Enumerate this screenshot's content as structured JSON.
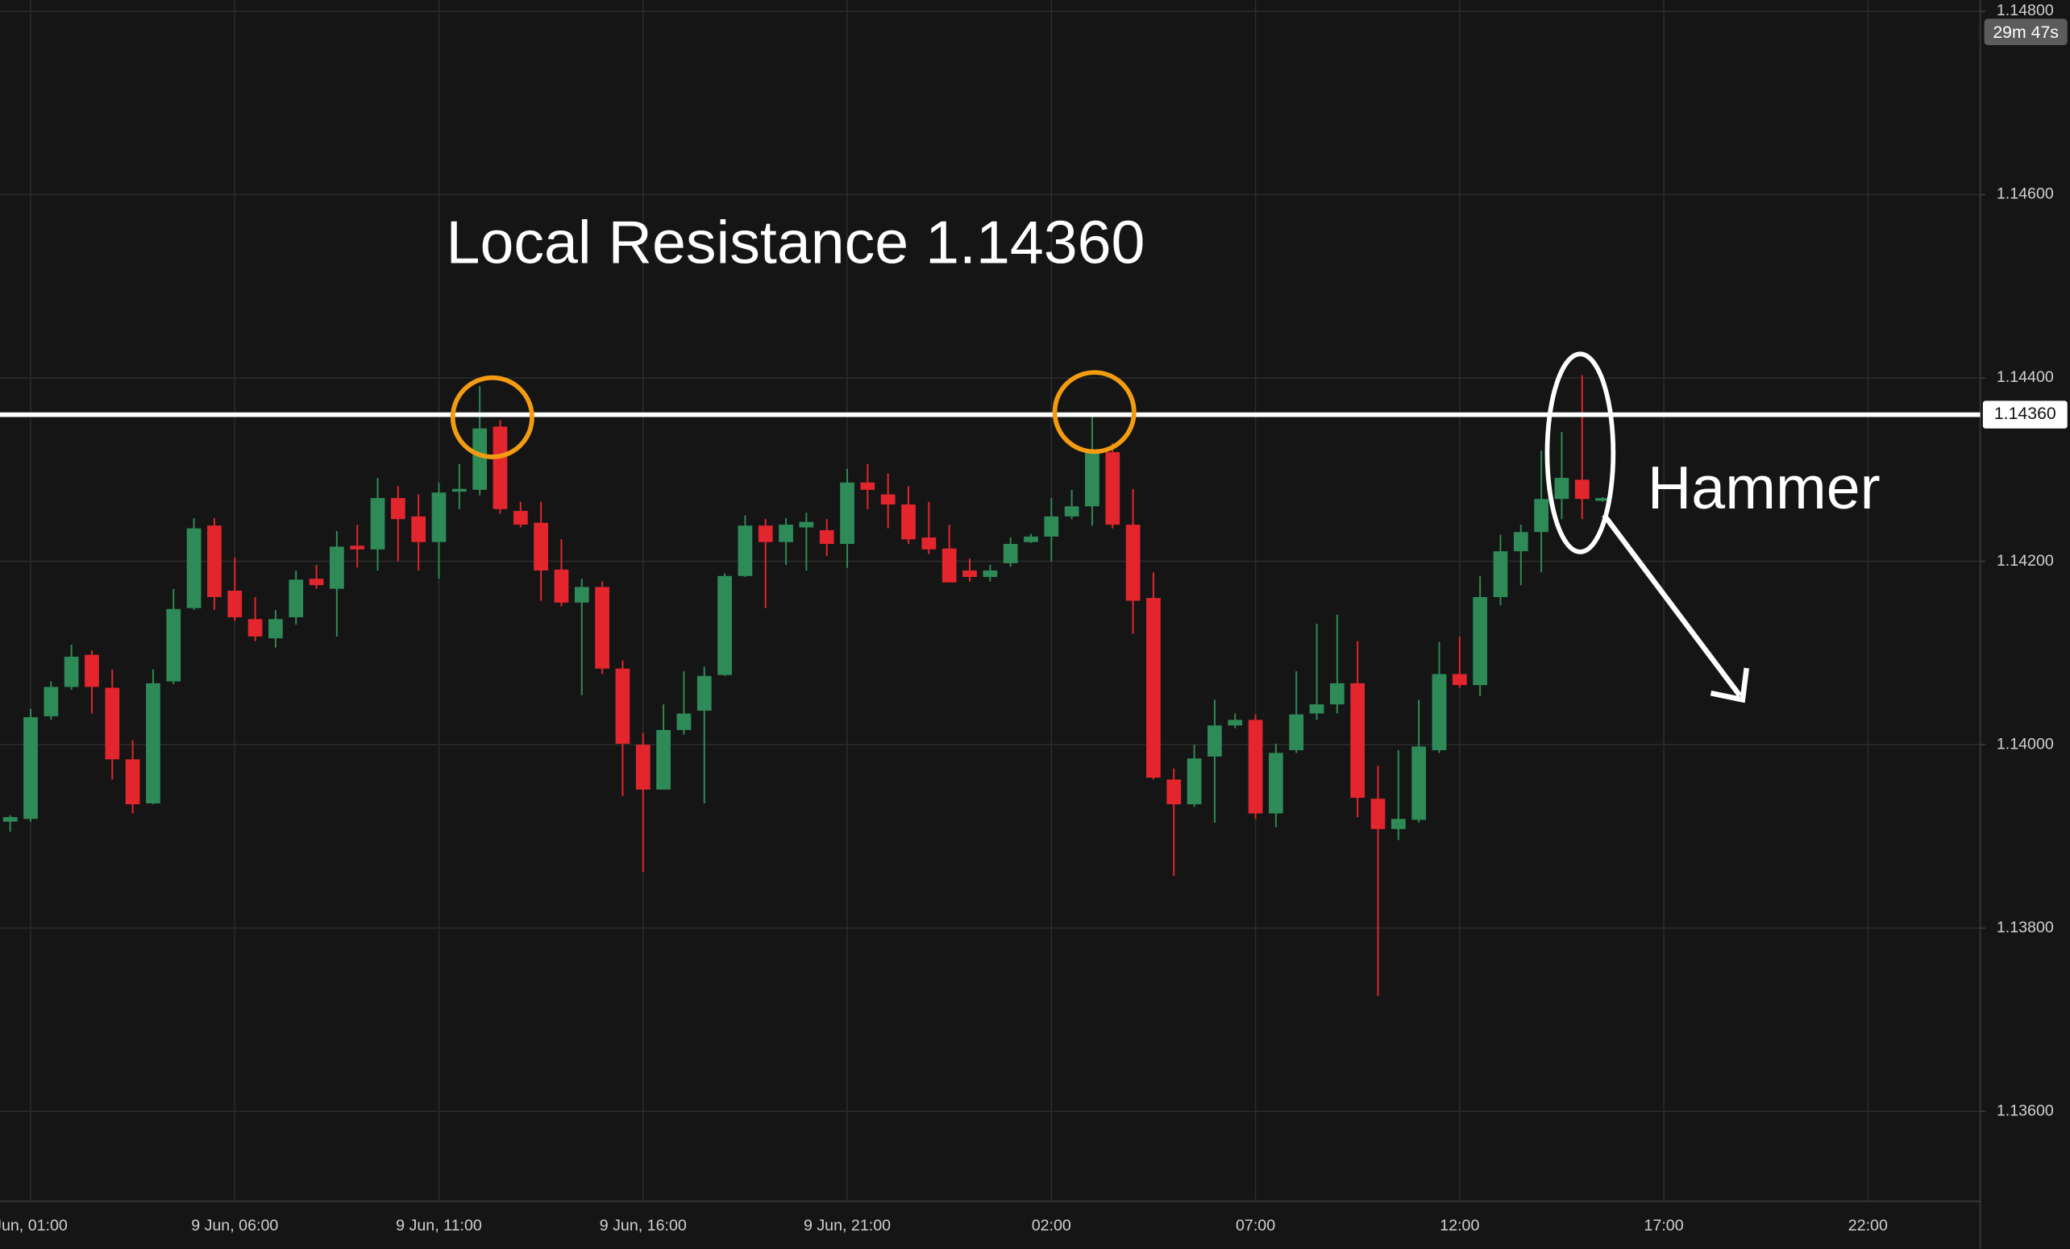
{
  "chart_data": {
    "type": "candlestick",
    "annotations": [
      "Local Resistance 1.14360",
      "Hammer"
    ],
    "countdown": "29m 47s",
    "resistance": {
      "value": 1.1436,
      "label": "1.14360"
    },
    "up_color": "#2e8b57",
    "down_color": "#e3262d",
    "grid": true,
    "ylim": [
      1.13502,
      1.14812
    ],
    "yticks": [
      {
        "value": 1.136,
        "label": "1.13600"
      },
      {
        "value": 1.138,
        "label": "1.13800"
      },
      {
        "value": 1.14,
        "label": "1.14000"
      },
      {
        "value": 1.142,
        "label": "1.14200"
      },
      {
        "value": 1.144,
        "label": "1.14400"
      },
      {
        "value": 1.146,
        "label": "1.14600"
      },
      {
        "value": 1.148,
        "label": "1.14800"
      }
    ],
    "categories": [
      null,
      "Jun, 01:00",
      null,
      null,
      null,
      null,
      null,
      null,
      null,
      null,
      null,
      "9 Jun, 06:00",
      null,
      null,
      null,
      null,
      null,
      null,
      null,
      null,
      null,
      "9 Jun, 11:00",
      null,
      null,
      null,
      null,
      null,
      null,
      null,
      null,
      null,
      "9 Jun, 16:00",
      null,
      null,
      null,
      null,
      null,
      null,
      null,
      null,
      null,
      "9 Jun, 21:00",
      null,
      null,
      null,
      null,
      null,
      null,
      null,
      null,
      null,
      "02:00",
      null,
      null,
      null,
      null,
      null,
      null,
      null,
      null,
      null,
      "07:00",
      null,
      null,
      null,
      null,
      null,
      null,
      null,
      null,
      null,
      "12:00",
      null,
      null,
      null,
      null,
      null,
      null,
      null,
      null,
      null,
      "17:00",
      null,
      null,
      null,
      null,
      null,
      null,
      null,
      null,
      null,
      "22:00",
      null,
      null,
      null,
      null,
      null
    ],
    "open": [
      1.13916,
      1.13919,
      1.14031,
      1.14063,
      1.14098,
      1.14062,
      1.13984,
      1.13936,
      1.14069,
      1.14149,
      1.14239,
      1.14168,
      1.14137,
      1.14116,
      1.14139,
      1.14181,
      1.1417,
      1.14217,
      1.14213,
      1.14269,
      1.14249,
      1.14221,
      1.14276,
      1.14278,
      1.14347,
      1.14255,
      1.14242,
      1.14191,
      1.14155,
      1.14172,
      1.14083,
      1.14,
      1.13951,
      1.14016,
      1.14037,
      1.14076,
      1.14184,
      1.14239,
      1.14221,
      1.14237,
      1.14234,
      1.14219,
      1.14286,
      1.14273,
      1.14262,
      1.14226,
      1.14214,
      1.1419,
      1.14183,
      1.14198,
      1.14221,
      1.14227,
      1.14249,
      1.1426,
      1.14319,
      1.1424,
      1.1416,
      1.13962,
      1.13935,
      1.13987,
      1.14021,
      1.14027,
      1.13925,
      1.13994,
      1.14034,
      1.14044,
      1.14067,
      1.13941,
      1.13908,
      1.13918,
      1.13994,
      1.14077,
      1.14065,
      1.14161,
      1.14211,
      1.14232,
      1.14268,
      1.14289,
      1.14266,
      null,
      null,
      null,
      null,
      null,
      null,
      null,
      null,
      null,
      null,
      null,
      null,
      null,
      null,
      null,
      null,
      null,
      null
    ],
    "high": [
      1.13923,
      1.14039,
      1.14069,
      1.14109,
      1.14103,
      1.14082,
      1.14005,
      1.14082,
      1.1417,
      1.14247,
      1.14247,
      1.14204,
      1.14161,
      1.14147,
      1.1419,
      1.14196,
      1.14233,
      1.1424,
      1.14291,
      1.14282,
      1.14273,
      1.14286,
      1.14306,
      1.14391,
      1.14354,
      1.14265,
      1.14265,
      1.14224,
      1.14181,
      1.14178,
      1.14092,
      1.14013,
      1.14044,
      1.1408,
      1.14085,
      1.14187,
      1.1425,
      1.14246,
      1.14247,
      1.14253,
      1.14246,
      1.14301,
      1.14306,
      1.14296,
      1.14282,
      1.14265,
      1.1424,
      1.14203,
      1.14196,
      1.14226,
      1.1423,
      1.14269,
      1.14278,
      1.14358,
      1.14329,
      1.14279,
      1.14188,
      1.13974,
      1.14,
      1.14049,
      1.14034,
      1.14033,
      1.14001,
      1.1408,
      1.14132,
      1.14142,
      1.14113,
      1.13977,
      1.13994,
      1.14049,
      1.14112,
      1.14118,
      1.14184,
      1.14229,
      1.1424,
      1.14321,
      1.14341,
      1.14403,
      1.1427,
      null,
      null,
      null,
      null,
      null,
      null,
      null,
      null,
      null,
      null,
      null,
      null,
      null,
      null,
      null,
      null,
      null,
      null
    ],
    "low": [
      1.13905,
      1.13916,
      1.14027,
      1.1406,
      1.14034,
      1.13962,
      1.13925,
      1.13935,
      1.14066,
      1.14147,
      1.14147,
      1.14135,
      1.14113,
      1.14106,
      1.14131,
      1.1417,
      1.14118,
      1.14193,
      1.1419,
      1.142,
      1.1419,
      1.14181,
      1.14257,
      1.14272,
      1.14252,
      1.14237,
      1.14157,
      1.14151,
      1.14054,
      1.14077,
      1.13944,
      1.13861,
      1.13951,
      1.14011,
      1.13936,
      1.14075,
      1.14183,
      1.14149,
      1.14196,
      1.1419,
      1.14206,
      1.14193,
      1.14257,
      1.14236,
      1.14219,
      1.14208,
      1.14177,
      1.14178,
      1.14178,
      1.14194,
      1.1422,
      1.142,
      1.14246,
      1.14239,
      1.14236,
      1.14121,
      1.13962,
      1.13857,
      1.13932,
      1.13915,
      1.14018,
      1.13919,
      1.1391,
      1.13991,
      1.14027,
      1.14034,
      1.13921,
      1.13726,
      1.13896,
      1.13915,
      1.13991,
      1.14062,
      1.14053,
      1.14152,
      1.14174,
      1.14188,
      1.14246,
      1.14246,
      1.14265,
      null,
      null,
      null,
      null,
      null,
      null,
      null,
      null,
      null,
      null,
      null,
      null,
      null,
      null,
      null,
      null,
      null,
      null
    ],
    "close": [
      1.13921,
      1.1403,
      1.14063,
      1.14096,
      1.14063,
      1.13984,
      1.13935,
      1.14067,
      1.14148,
      1.14236,
      1.14161,
      1.14139,
      1.14118,
      1.14137,
      1.1418,
      1.14174,
      1.14216,
      1.14213,
      1.14269,
      1.14246,
      1.14221,
      1.14275,
      1.14279,
      1.14345,
      1.14257,
      1.1424,
      1.1419,
      1.14155,
      1.14172,
      1.14083,
      1.14001,
      1.13951,
      1.14016,
      1.14034,
      1.14075,
      1.14184,
      1.14239,
      1.14221,
      1.1424,
      1.14243,
      1.14219,
      1.14286,
      1.14278,
      1.14262,
      1.14224,
      1.14213,
      1.14177,
      1.14183,
      1.1419,
      1.14219,
      1.14227,
      1.14249,
      1.1426,
      1.14321,
      1.1424,
      1.14157,
      1.13964,
      1.13935,
      1.13985,
      1.14021,
      1.14027,
      1.13925,
      1.13991,
      1.14033,
      1.14044,
      1.14067,
      1.13942,
      1.13908,
      1.13919,
      1.13998,
      1.14077,
      1.14065,
      1.14161,
      1.14211,
      1.14232,
      1.14268,
      1.14291,
      1.14268,
      1.14269,
      null,
      null,
      null,
      null,
      null,
      null,
      null,
      null,
      null,
      null,
      null,
      null,
      null,
      null,
      null,
      null,
      null,
      null
    ]
  }
}
